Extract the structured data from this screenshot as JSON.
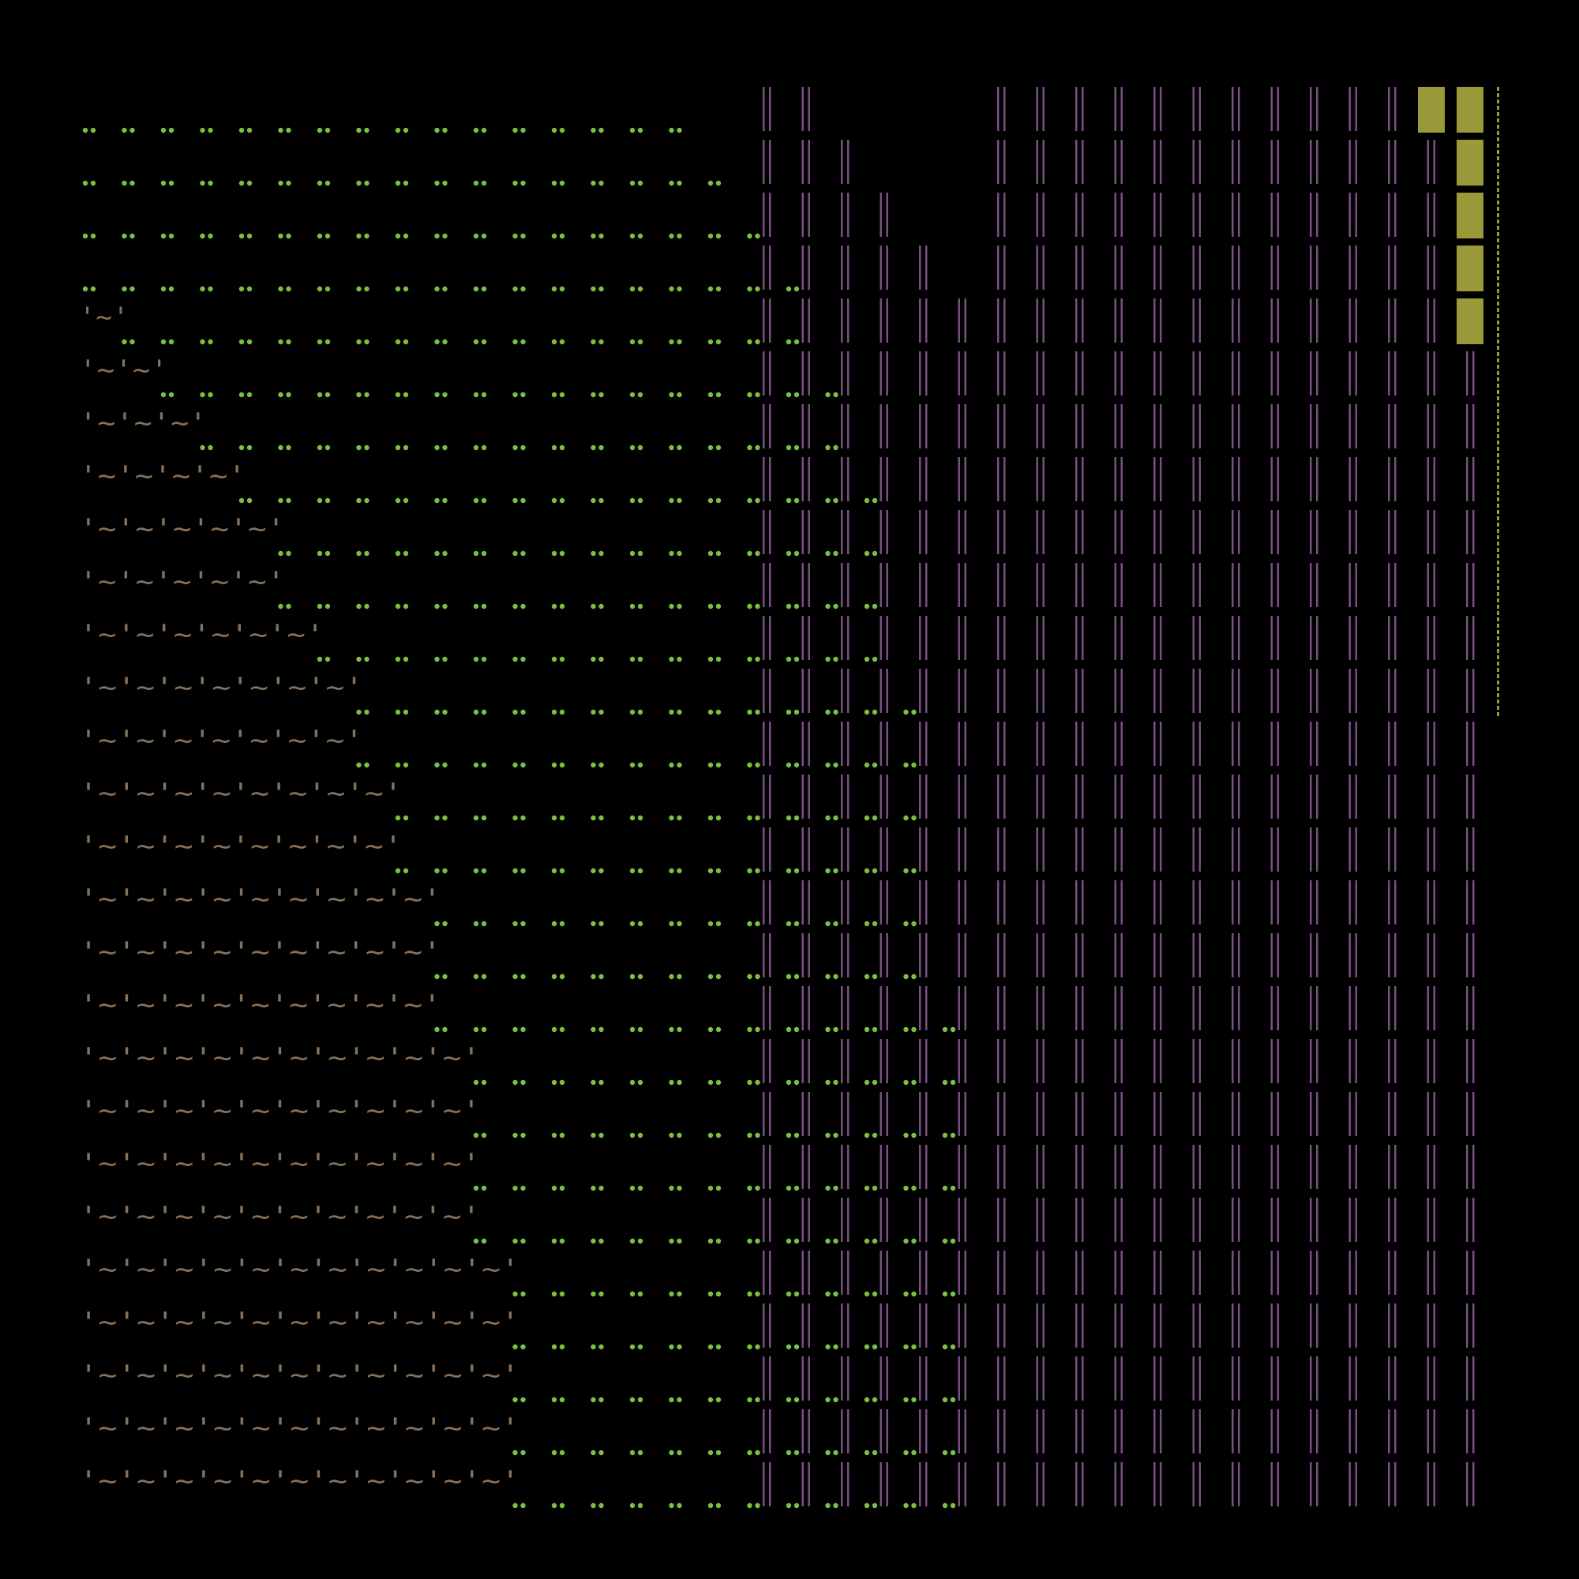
{
  "artwork": {
    "background": "#000000",
    "glyphs": {
      "dots": "••",
      "tilde_unit": "'~'",
      "bars": "||",
      "block": "▓"
    },
    "palette": {
      "dots": "#7ac142",
      "tildes": "#8a7058",
      "bars": "#7a4f82",
      "blocks": "#9a9a3a"
    },
    "rows": 27,
    "dot_row_lengths": [
      16,
      17,
      18,
      19,
      18,
      18,
      17,
      17,
      16,
      16,
      15,
      15,
      15,
      14,
      14,
      13,
      13,
      14,
      13,
      13,
      13,
      13,
      12,
      12,
      12,
      12,
      12
    ],
    "tilde_row_units": [
      0,
      0,
      0,
      0,
      1,
      2,
      3,
      4,
      5,
      5,
      6,
      7,
      7,
      8,
      8,
      9,
      9,
      9,
      10,
      10,
      10,
      10,
      11,
      11,
      11,
      11,
      11
    ],
    "bar_columns": 19,
    "block_columns": 2
  }
}
